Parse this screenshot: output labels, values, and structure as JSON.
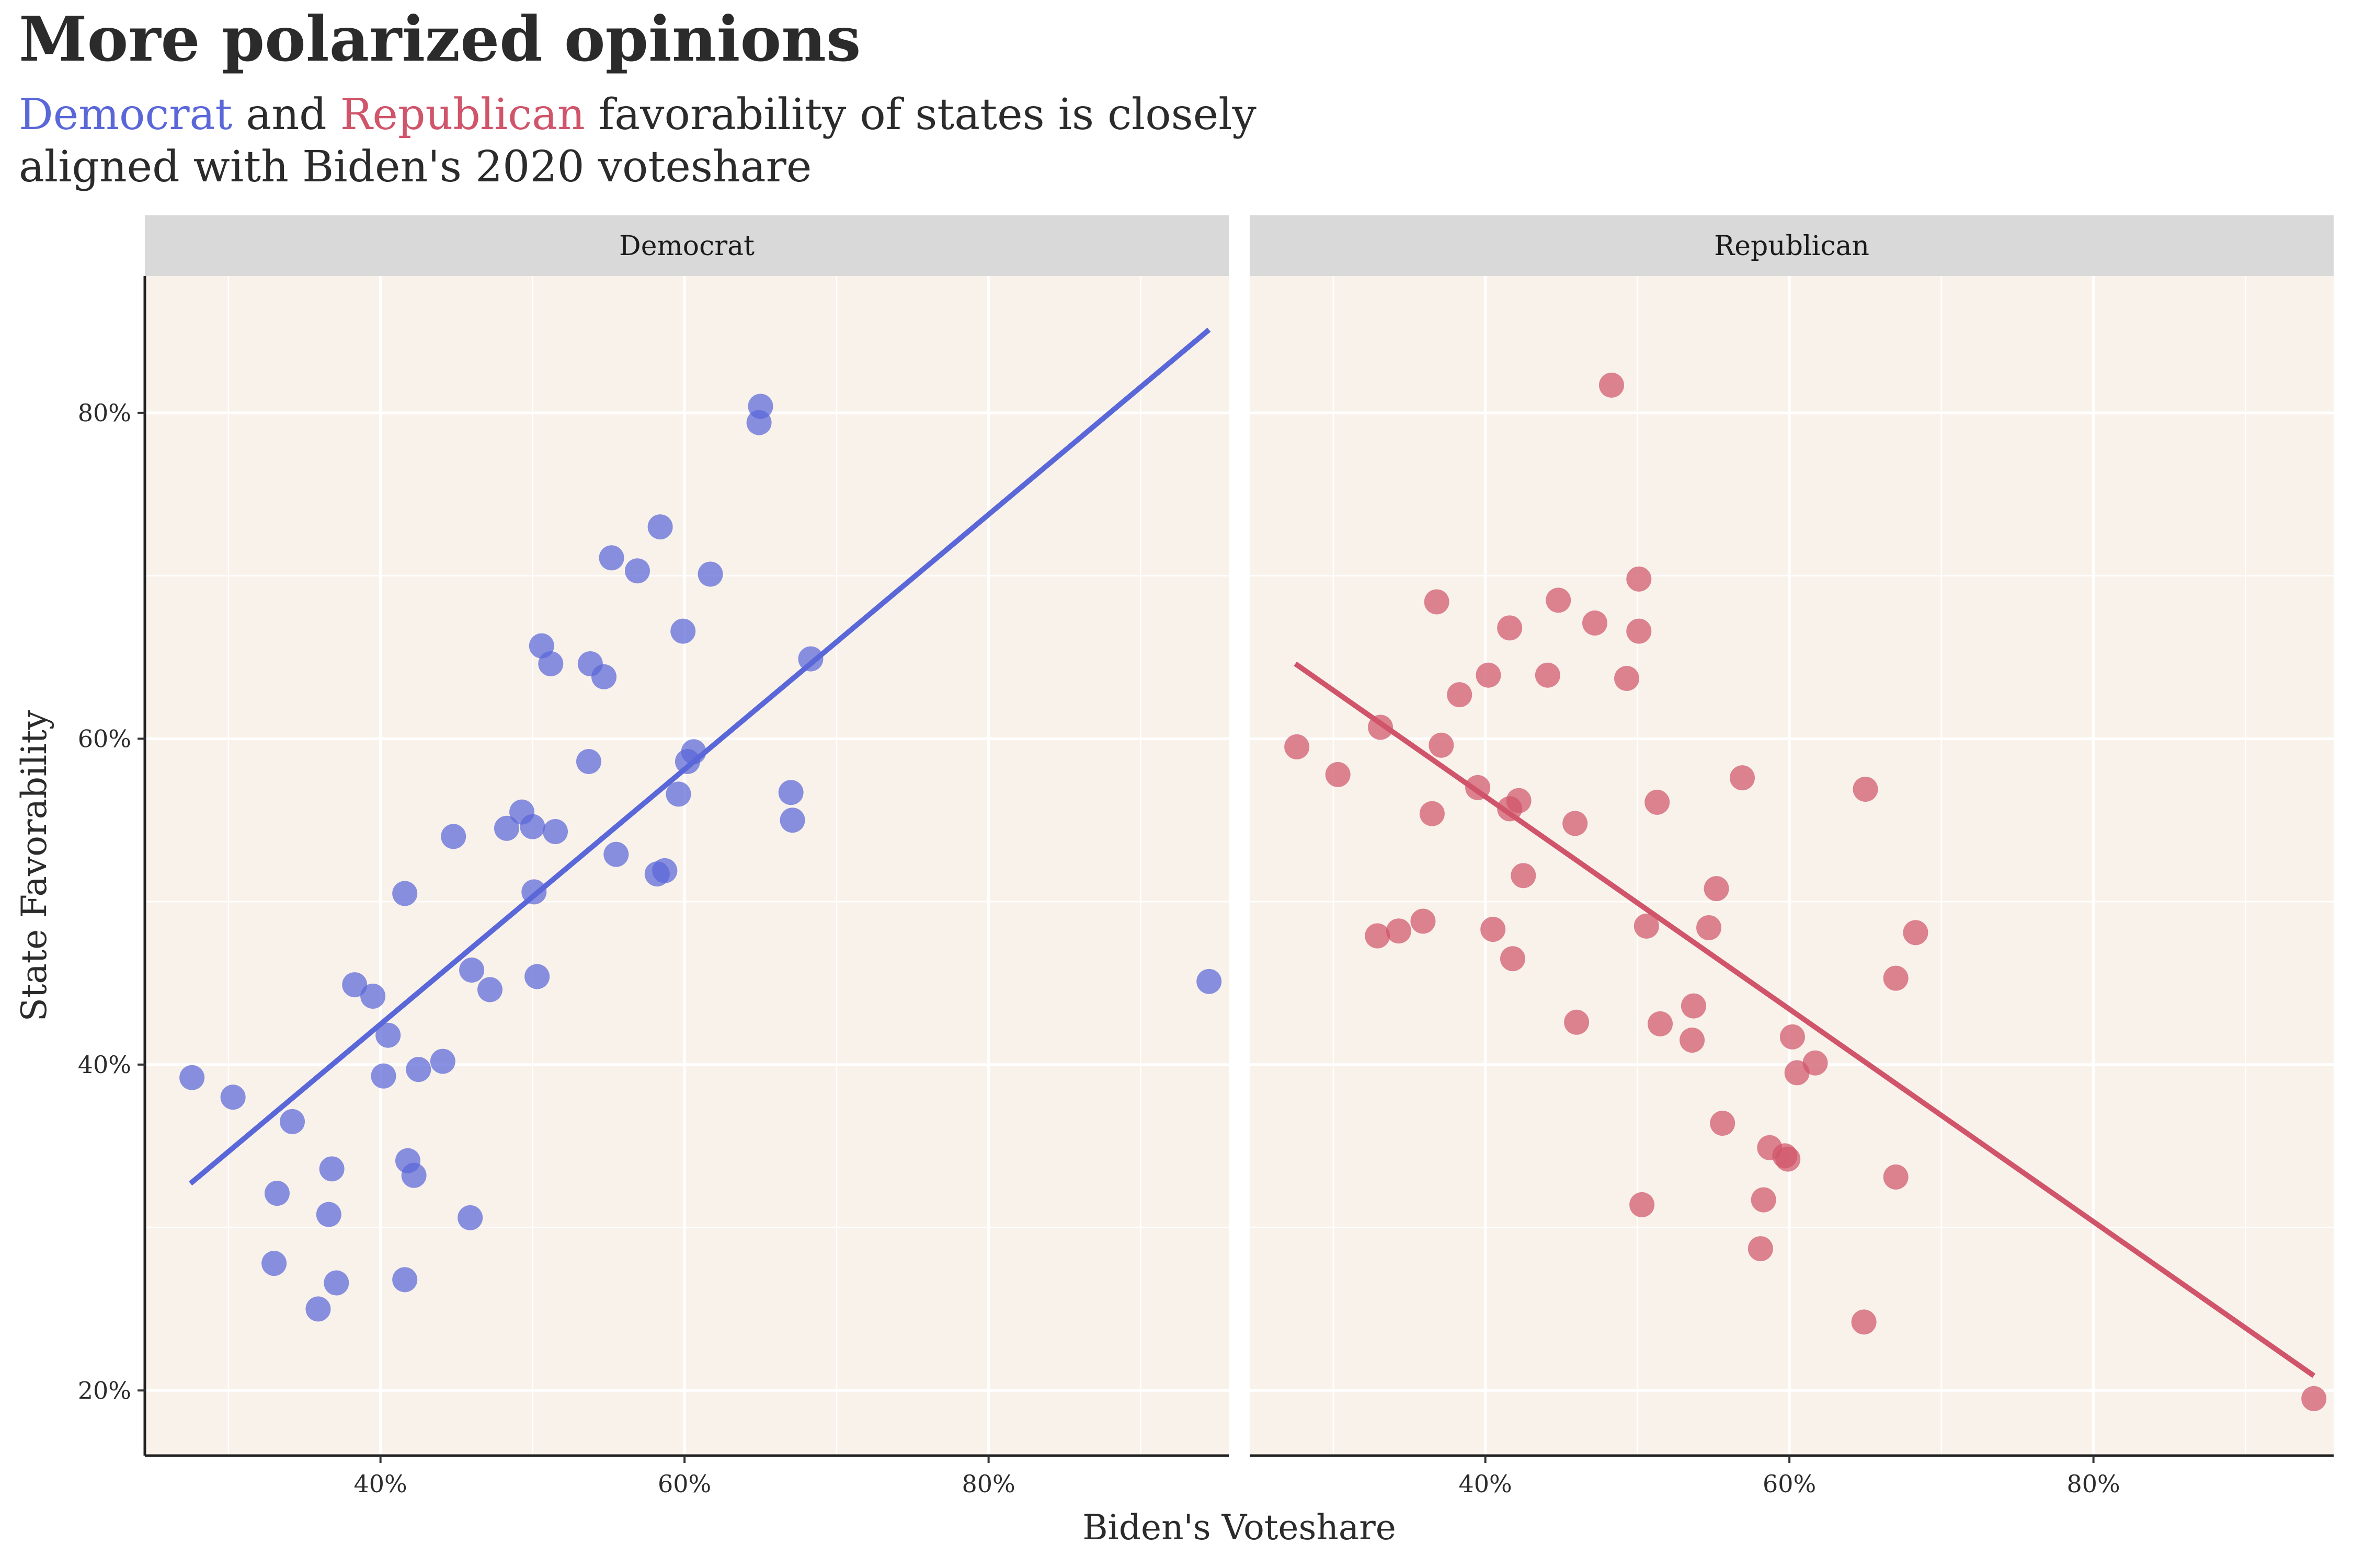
{
  "title": "More polarized opinions",
  "subtitle": {
    "dem_word": "Democrat",
    "mid_text": " and ",
    "rep_word": "Republican",
    "rest_text": " favorability of states is closely aligned with Biden's 2020 voteshare"
  },
  "colors": {
    "democrat": "#5a67d8",
    "republican": "#d0546a",
    "panel_background": "#f9f2eb",
    "strip_background": "#d9d9d9"
  },
  "chart_data": {
    "type": "scatter",
    "facets": [
      "Democrat",
      "Republican"
    ],
    "xlabel": "Biden's Voteshare",
    "ylabel": "State Favorability",
    "xlim": [
      24.5,
      95.8
    ],
    "ylim": [
      16,
      88.4
    ],
    "x_ticks": [
      40,
      60,
      80
    ],
    "x_tick_labels": [
      "40%",
      "60%",
      "80%"
    ],
    "y_ticks": [
      20,
      40,
      60,
      80
    ],
    "y_tick_labels": [
      "20%",
      "40%",
      "60%",
      "80%"
    ],
    "grid": true,
    "series": [
      {
        "name": "Democrat",
        "color": "#5a67d8",
        "fit_line": [
          [
            27.5,
            32.7
          ],
          [
            94.5,
            85.1
          ]
        ],
        "points": [
          [
            27.6,
            39.2
          ],
          [
            30.3,
            38.0
          ],
          [
            34.2,
            36.5
          ],
          [
            33.2,
            32.1
          ],
          [
            33.0,
            27.8
          ],
          [
            35.9,
            25.0
          ],
          [
            36.6,
            30.8
          ],
          [
            36.8,
            33.6
          ],
          [
            37.1,
            26.6
          ],
          [
            38.3,
            44.9
          ],
          [
            39.5,
            44.2
          ],
          [
            40.2,
            39.3
          ],
          [
            40.5,
            41.8
          ],
          [
            41.6,
            50.5
          ],
          [
            41.6,
            26.8
          ],
          [
            41.8,
            34.1
          ],
          [
            42.2,
            33.2
          ],
          [
            42.5,
            39.7
          ],
          [
            44.1,
            40.2
          ],
          [
            44.8,
            54.0
          ],
          [
            45.9,
            30.6
          ],
          [
            46.0,
            45.8
          ],
          [
            47.2,
            44.6
          ],
          [
            48.3,
            54.5
          ],
          [
            49.3,
            55.5
          ],
          [
            50.0,
            54.6
          ],
          [
            50.1,
            50.6
          ],
          [
            50.3,
            45.4
          ],
          [
            50.6,
            65.7
          ],
          [
            51.2,
            64.6
          ],
          [
            51.5,
            54.3
          ],
          [
            53.7,
            58.6
          ],
          [
            53.8,
            64.6
          ],
          [
            54.7,
            63.8
          ],
          [
            55.2,
            71.1
          ],
          [
            55.5,
            52.9
          ],
          [
            56.9,
            70.3
          ],
          [
            58.2,
            51.7
          ],
          [
            58.4,
            73.0
          ],
          [
            58.7,
            51.9
          ],
          [
            59.6,
            56.6
          ],
          [
            59.9,
            66.6
          ],
          [
            60.2,
            58.6
          ],
          [
            60.6,
            59.2
          ],
          [
            61.7,
            70.1
          ],
          [
            64.9,
            79.4
          ],
          [
            65.0,
            80.4
          ],
          [
            67.0,
            56.7
          ],
          [
            67.1,
            55.0
          ],
          [
            68.3,
            64.9
          ],
          [
            94.5,
            45.1
          ]
        ]
      },
      {
        "name": "Republican",
        "color": "#d0546a",
        "fit_line": [
          [
            27.5,
            64.6
          ],
          [
            94.5,
            20.9
          ]
        ],
        "points": [
          [
            27.6,
            59.5
          ],
          [
            30.3,
            57.8
          ],
          [
            33.1,
            60.7
          ],
          [
            32.9,
            47.9
          ],
          [
            34.3,
            48.2
          ],
          [
            35.9,
            48.8
          ],
          [
            36.5,
            55.4
          ],
          [
            36.8,
            68.4
          ],
          [
            37.1,
            59.6
          ],
          [
            38.3,
            62.7
          ],
          [
            39.5,
            57.0
          ],
          [
            40.2,
            63.9
          ],
          [
            40.5,
            48.3
          ],
          [
            41.6,
            66.8
          ],
          [
            41.6,
            55.7
          ],
          [
            41.8,
            46.5
          ],
          [
            42.2,
            56.2
          ],
          [
            42.5,
            51.6
          ],
          [
            44.1,
            63.9
          ],
          [
            44.8,
            68.5
          ],
          [
            45.9,
            54.8
          ],
          [
            46.0,
            42.6
          ],
          [
            47.2,
            67.1
          ],
          [
            48.3,
            81.7
          ],
          [
            49.3,
            63.7
          ],
          [
            50.1,
            69.8
          ],
          [
            50.1,
            66.6
          ],
          [
            50.3,
            31.4
          ],
          [
            50.6,
            48.5
          ],
          [
            51.3,
            56.1
          ],
          [
            51.5,
            42.5
          ],
          [
            53.6,
            41.5
          ],
          [
            53.7,
            43.6
          ],
          [
            54.7,
            48.4
          ],
          [
            55.2,
            50.8
          ],
          [
            55.6,
            36.4
          ],
          [
            56.9,
            57.6
          ],
          [
            58.1,
            28.7
          ],
          [
            58.3,
            31.7
          ],
          [
            58.7,
            34.9
          ],
          [
            59.7,
            34.4
          ],
          [
            59.9,
            34.2
          ],
          [
            60.2,
            41.7
          ],
          [
            60.5,
            39.5
          ],
          [
            61.7,
            40.1
          ],
          [
            64.9,
            24.2
          ],
          [
            65.0,
            56.9
          ],
          [
            67.0,
            45.3
          ],
          [
            67.0,
            33.1
          ],
          [
            68.3,
            48.1
          ],
          [
            94.5,
            19.5
          ]
        ]
      }
    ]
  }
}
